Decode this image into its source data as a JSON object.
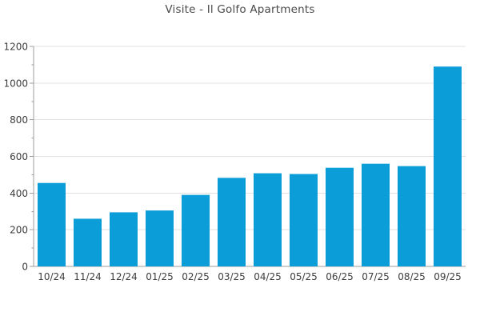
{
  "chart_data": {
    "type": "bar",
    "title": "Visite - Il Golfo Apartments",
    "categories": [
      "10/24",
      "11/24",
      "12/24",
      "01/25",
      "02/25",
      "03/25",
      "04/25",
      "05/25",
      "06/25",
      "07/25",
      "08/25",
      "09/25"
    ],
    "values": [
      455,
      260,
      295,
      305,
      390,
      483,
      508,
      504,
      538,
      560,
      547,
      1090
    ],
    "xlabel": "",
    "ylabel": "",
    "ylim": [
      0,
      1200
    ],
    "yticks": [
      0,
      200,
      400,
      600,
      800,
      1000,
      1200
    ],
    "ytick_step": 200,
    "y_minor_tick_step": 100,
    "grid": true,
    "legend": false,
    "colors": {
      "bar": "#0b9dd8",
      "grid": "#e2e2e2",
      "axis": "#9c9c9c",
      "tick_text": "#3d3d3d",
      "title_text": "#4a4a4a",
      "background": "#ffffff"
    }
  }
}
